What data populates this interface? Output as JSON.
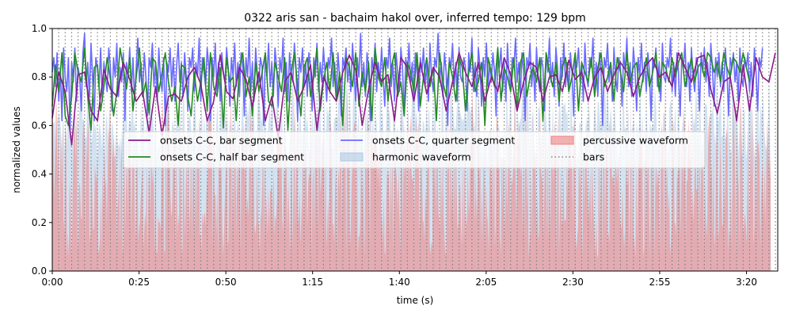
{
  "chart_data": {
    "type": "line",
    "title": "0322 aris san - bachaim hakol over, inferred tempo: 129 bpm",
    "xlabel": "time (s)",
    "ylabel": "normalized values",
    "xlim": [
      0,
      209
    ],
    "ylim": [
      0.0,
      1.0
    ],
    "x_ticks": [
      {
        "value": 0,
        "label": "0:00"
      },
      {
        "value": 25,
        "label": "0:25"
      },
      {
        "value": 50,
        "label": "0:50"
      },
      {
        "value": 75,
        "label": "1:15"
      },
      {
        "value": 100,
        "label": "1:40"
      },
      {
        "value": 125,
        "label": "2:05"
      },
      {
        "value": 150,
        "label": "2:30"
      },
      {
        "value": 175,
        "label": "2:55"
      },
      {
        "value": 200,
        "label": "3:20"
      }
    ],
    "y_ticks": [
      {
        "value": 0.0,
        "label": "0.0"
      },
      {
        "value": 0.2,
        "label": "0.2"
      },
      {
        "value": 0.4,
        "label": "0.4"
      },
      {
        "value": 0.6,
        "label": "0.6"
      },
      {
        "value": 0.8,
        "label": "0.8"
      },
      {
        "value": 1.0,
        "label": "1.0"
      }
    ],
    "legend_position": "center",
    "legend": [
      {
        "label": "onsets C-C, bar segment",
        "kind": "line",
        "color": "#8b1a8b"
      },
      {
        "label": "onsets C-C, half bar segment",
        "kind": "line",
        "color": "#228b22"
      },
      {
        "label": "onsets C-C, quarter segment",
        "kind": "line",
        "color": "#6a6aff"
      },
      {
        "label": "harmonic waveform",
        "kind": "area",
        "color": "#aecbe6"
      },
      {
        "label": "percussive waveform",
        "kind": "area",
        "color": "#f08080"
      },
      {
        "label": "bars",
        "kind": "dotted",
        "color": "#808080"
      }
    ],
    "bar_interval": 1.86,
    "series": [
      {
        "name": "onsets C-C, bar segment",
        "color": "#8b1a8b",
        "x0": 0,
        "dx": 1.86,
        "values": [
          0.63,
          0.82,
          0.74,
          0.52,
          0.81,
          0.82,
          0.66,
          0.62,
          0.83,
          0.75,
          0.72,
          0.86,
          0.79,
          0.7,
          0.74,
          0.57,
          0.76,
          0.56,
          0.72,
          0.73,
          0.7,
          0.8,
          0.84,
          0.77,
          0.62,
          0.7,
          0.89,
          0.74,
          0.71,
          0.84,
          0.79,
          0.68,
          0.82,
          0.62,
          0.72,
          0.55,
          0.78,
          0.82,
          0.7,
          0.76,
          0.85,
          0.58,
          0.8,
          0.74,
          0.7,
          0.82,
          0.89,
          0.83,
          0.6,
          0.75,
          0.86,
          0.78,
          0.81,
          0.62,
          0.88,
          0.84,
          0.7,
          0.86,
          0.73,
          0.84,
          0.8,
          0.66,
          0.78,
          0.9,
          0.82,
          0.76,
          0.86,
          0.7,
          0.8,
          0.74,
          0.88,
          0.81,
          0.66,
          0.78,
          0.86,
          0.84,
          0.7,
          0.8,
          0.81,
          0.74,
          0.87,
          0.79,
          0.82,
          0.7,
          0.8,
          0.84,
          0.74,
          0.81,
          0.86,
          0.82,
          0.72,
          0.8,
          0.85,
          0.88,
          0.8,
          0.82,
          0.76,
          0.9,
          0.84,
          0.78,
          0.88,
          0.89,
          0.75,
          0.65,
          0.78,
          0.8,
          0.62,
          0.85,
          0.66,
          0.88,
          0.8,
          0.78,
          0.9,
          0.65
        ]
      },
      {
        "name": "onsets C-C, half bar segment",
        "color": "#228b22",
        "x0": 0,
        "dx": 0.93,
        "values": [
          0.68,
          0.85,
          0.74,
          0.9,
          0.64,
          0.6,
          0.72,
          0.9,
          0.82,
          0.78,
          0.92,
          0.72,
          0.58,
          0.84,
          0.85,
          0.66,
          0.76,
          0.88,
          0.79,
          0.64,
          0.74,
          0.92,
          0.84,
          0.75,
          0.88,
          0.66,
          0.8,
          0.92,
          0.72,
          0.78,
          0.65,
          0.88,
          0.86,
          0.74,
          0.82,
          0.9,
          0.78,
          0.7,
          0.76,
          0.6,
          0.85,
          0.84,
          0.72,
          0.64,
          0.82,
          0.7,
          0.78,
          0.88,
          0.66,
          0.9,
          0.76,
          0.72,
          0.84,
          0.59,
          0.88,
          0.78,
          0.8,
          0.62,
          0.84,
          0.9,
          0.72,
          0.8,
          0.64,
          0.86,
          0.74,
          0.82,
          0.9,
          0.7,
          0.68,
          0.86,
          0.8,
          0.74,
          0.88,
          0.58,
          0.82,
          0.9,
          0.76,
          0.64,
          0.84,
          0.88,
          0.72,
          0.8,
          0.92,
          0.66,
          0.78,
          0.86,
          0.74,
          0.9,
          0.7,
          0.82,
          0.6,
          0.88,
          0.84,
          0.76,
          0.9,
          0.68,
          0.82,
          0.74,
          0.86,
          0.62,
          0.92,
          0.8,
          0.76,
          0.88,
          0.7,
          0.84,
          0.9,
          0.72,
          0.78,
          0.64,
          0.86,
          0.82,
          0.74,
          0.9,
          0.68,
          0.8,
          0.88,
          0.76,
          0.84,
          0.62,
          0.9,
          0.78,
          0.72,
          0.86,
          0.8,
          0.7,
          0.88,
          0.84,
          0.66,
          0.82,
          0.9,
          0.74,
          0.78,
          0.86,
          0.6,
          0.88,
          0.82,
          0.76,
          0.92,
          0.7,
          0.84,
          0.8,
          0.74,
          0.88,
          0.66,
          0.86,
          0.9,
          0.72,
          0.8,
          0.84,
          0.78,
          0.88,
          0.62,
          0.9,
          0.82,
          0.76,
          0.86,
          0.7,
          0.84,
          0.88,
          0.74,
          0.8,
          0.9,
          0.66,
          0.86,
          0.82,
          0.78,
          0.88,
          0.72,
          0.84,
          0.9,
          0.76,
          0.8,
          0.86,
          0.7,
          0.88,
          0.82,
          0.74,
          0.9,
          0.78,
          0.84,
          0.86,
          0.72,
          0.8,
          0.88,
          0.76,
          0.82,
          0.9,
          0.74,
          0.86,
          0.84,
          0.78,
          0.88,
          0.8,
          0.86,
          0.9,
          0.76,
          0.82,
          0.88,
          0.78,
          0.84,
          0.86,
          0.8,
          0.9,
          0.88,
          0.82,
          0.86,
          0.78,
          0.9,
          0.84,
          0.8,
          0.88,
          0.86,
          0.82,
          0.9,
          0.84,
          0.78
        ]
      },
      {
        "name": "onsets C-C, quarter segment",
        "color": "#6a6aff",
        "x0": 0,
        "dx": 0.465,
        "values": [
          0.82,
          0.88,
          0.76,
          0.9,
          0.7,
          0.84,
          0.62,
          0.92,
          0.8,
          0.74,
          0.88,
          0.58,
          0.86,
          0.78,
          0.92,
          0.7,
          0.84,
          0.8,
          0.66,
          0.9,
          0.98,
          0.76,
          0.86,
          0.72,
          0.94,
          0.8,
          0.62,
          0.88,
          0.84,
          0.76,
          0.92,
          0.7,
          0.86,
          0.8,
          0.74,
          0.92,
          0.84,
          0.66,
          0.88,
          0.8,
          0.94,
          0.72,
          0.84,
          0.78,
          0.9,
          0.62,
          0.86,
          0.8,
          0.92,
          0.74,
          0.88,
          0.7,
          0.84,
          0.96,
          0.78,
          0.86,
          0.72,
          0.9,
          0.8,
          0.64,
          0.88,
          0.84,
          0.94,
          0.76,
          0.86,
          0.7,
          0.92,
          0.8,
          0.74,
          0.88,
          0.6,
          0.86,
          0.82,
          0.92,
          0.76,
          0.88,
          0.7,
          0.84,
          0.94,
          0.78,
          0.86,
          0.72,
          0.9,
          0.8,
          0.66,
          0.88,
          0.84,
          0.92,
          0.74,
          0.86,
          0.8,
          0.96,
          0.7,
          0.88,
          0.82,
          0.76,
          0.92,
          0.84,
          0.62,
          0.88,
          0.8,
          0.94,
          0.74,
          0.86,
          0.7,
          0.9,
          0.82,
          0.78,
          0.92,
          0.84,
          0.68,
          0.88,
          0.8,
          0.94,
          0.76,
          0.86,
          0.72,
          0.9,
          0.84,
          0.64,
          0.88,
          0.8,
          0.96,
          0.74,
          0.86,
          0.7,
          0.92,
          0.82,
          0.78,
          0.88,
          0.84,
          0.6,
          0.9,
          0.8,
          0.94,
          0.76,
          0.86,
          0.72,
          0.92,
          0.84,
          0.68,
          0.88,
          0.82,
          0.96,
          0.74,
          0.86,
          0.7,
          0.9,
          0.8,
          0.78,
          0.94,
          0.84,
          0.62,
          0.88,
          0.82,
          0.92,
          0.76,
          0.86,
          0.72,
          0.9,
          0.84,
          0.66,
          0.88,
          0.8,
          0.94,
          0.74,
          0.86,
          0.78,
          0.92,
          0.82,
          0.7,
          0.88,
          0.84,
          0.96,
          0.76,
          0.86,
          0.72,
          0.9,
          0.8,
          0.64,
          0.88,
          0.84,
          0.92,
          0.78,
          0.86,
          0.74,
          0.94,
          0.82,
          0.7,
          0.88,
          0.8,
          0.98,
          0.76,
          0.86,
          0.72,
          0.9,
          0.84,
          0.62,
          0.88,
          0.82,
          0.94,
          0.74,
          0.86,
          0.78,
          0.92,
          0.8,
          0.68,
          0.88,
          0.84,
          0.96,
          0.76,
          0.86,
          0.7,
          0.9,
          0.82,
          0.74,
          0.92,
          0.84,
          0.64,
          0.88,
          0.8,
          0.94,
          0.78,
          0.86,
          0.72,
          0.9,
          0.84,
          0.66,
          0.88,
          0.82,
          0.92,
          0.76,
          0.86,
          0.7,
          0.94,
          0.8,
          0.74,
          0.88,
          0.84,
          0.98,
          0.78,
          0.86,
          0.72,
          0.9,
          0.82,
          0.6,
          0.88,
          0.84,
          0.94,
          0.76,
          0.86,
          0.7,
          0.92,
          0.8,
          0.78,
          0.88,
          0.84,
          0.66,
          0.9,
          0.82,
          0.96,
          0.74,
          0.86,
          0.72,
          0.92,
          0.84,
          0.68,
          0.88,
          0.8,
          0.94,
          0.76,
          0.86,
          0.78,
          0.9,
          0.82,
          0.64,
          0.88,
          0.84,
          0.92,
          0.74,
          0.86,
          0.7,
          0.94,
          0.8,
          0.76,
          0.88,
          0.84,
          0.96,
          0.78,
          0.86,
          0.72,
          0.9,
          0.82,
          0.62,
          0.88,
          0.84,
          0.94,
          0.76,
          0.86,
          0.7,
          0.92,
          0.8,
          0.74,
          0.88,
          0.84,
          0.66,
          0.9,
          0.82,
          0.96,
          0.78,
          0.86,
          0.72,
          0.92,
          0.84,
          0.68,
          0.88,
          0.8,
          0.94,
          0.76,
          0.86,
          0.74,
          0.9,
          0.82,
          0.64,
          0.88,
          0.84,
          0.92,
          0.78,
          0.86,
          0.7,
          0.94,
          0.8,
          0.76,
          0.88,
          0.84,
          0.96,
          0.74,
          0.86,
          0.72,
          0.9,
          0.82,
          0.6,
          0.88,
          0.84,
          0.94,
          0.78,
          0.86,
          0.7,
          0.92,
          0.8,
          0.74,
          0.88,
          0.84,
          0.68,
          0.9,
          0.82,
          0.96,
          0.76,
          0.86,
          0.72,
          0.92,
          0.84,
          0.66,
          0.88,
          0.8,
          0.94,
          0.78,
          0.86,
          0.74,
          0.9,
          0.82,
          0.62,
          0.88,
          0.84,
          0.92,
          0.76,
          0.86,
          0.7,
          0.94,
          0.8,
          0.78,
          0.88,
          0.84,
          0.96,
          0.74,
          0.86,
          0.72,
          0.9,
          0.82,
          0.64,
          0.88,
          0.84,
          0.94,
          0.76,
          0.86,
          0.7,
          0.92,
          0.8,
          0.74,
          0.88,
          0.84,
          0.66,
          0.9,
          0.82,
          0.92,
          0.78,
          0.86,
          0.72,
          0.94,
          0.84,
          0.68,
          0.88,
          0.8,
          0.9,
          0.76,
          0.86,
          0.74,
          0.92,
          0.82,
          0.64,
          0.88,
          0.84,
          0.9,
          0.78,
          0.86,
          0.7,
          0.92,
          0.8,
          0.76,
          0.88,
          0.84,
          0.9,
          0.74,
          0.86,
          0.72,
          0.92,
          0.82,
          0.66,
          0.88,
          0.84,
          0.92
        ]
      }
    ]
  }
}
